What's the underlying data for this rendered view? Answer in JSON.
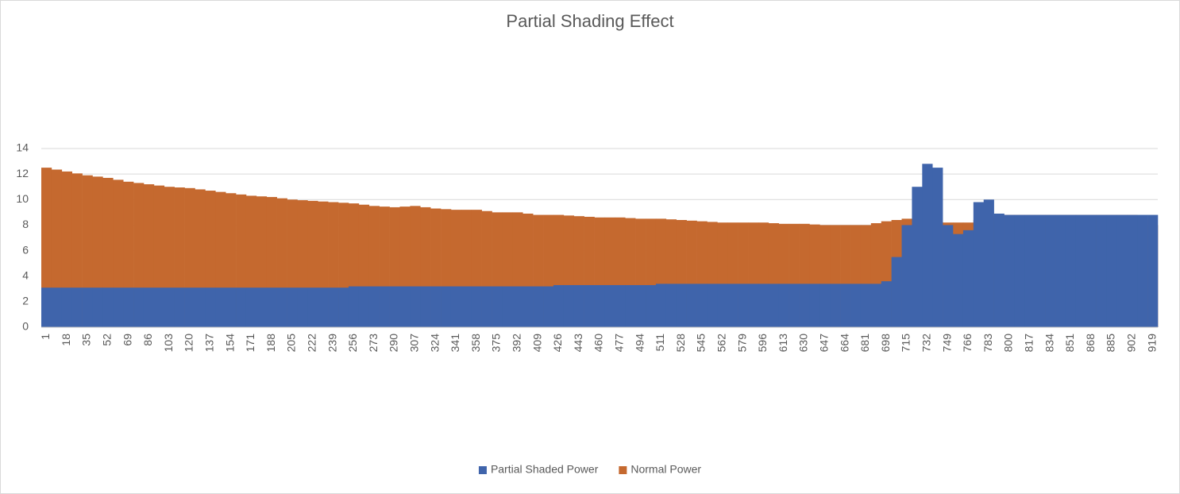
{
  "chart_data": {
    "type": "bar",
    "title": "Partial Shading Effect",
    "categories": [
      1,
      null,
      18,
      null,
      35,
      null,
      52,
      null,
      69,
      null,
      86,
      null,
      103,
      null,
      120,
      null,
      137,
      null,
      154,
      null,
      171,
      null,
      188,
      null,
      205,
      null,
      222,
      null,
      239,
      null,
      256,
      null,
      273,
      null,
      290,
      null,
      307,
      null,
      324,
      null,
      341,
      null,
      358,
      null,
      375,
      null,
      392,
      null,
      409,
      null,
      426,
      null,
      443,
      null,
      460,
      null,
      477,
      null,
      494,
      null,
      511,
      null,
      528,
      null,
      545,
      null,
      562,
      null,
      579,
      null,
      596,
      null,
      613,
      null,
      630,
      null,
      647,
      null,
      664,
      null,
      681,
      null,
      698,
      null,
      715,
      null,
      732,
      null,
      749,
      null,
      766,
      null,
      783,
      null,
      800,
      null,
      817,
      null,
      834,
      null,
      851,
      null,
      868,
      null,
      885,
      null,
      902,
      null,
      919
    ],
    "series": [
      {
        "name": "Partial Shaded Power",
        "color": "#3f64ab",
        "values": [
          3.1,
          3.1,
          3.1,
          3.1,
          3.1,
          3.1,
          3.1,
          3.1,
          3.1,
          3.1,
          3.1,
          3.1,
          3.1,
          3.1,
          3.1,
          3.1,
          3.1,
          3.1,
          3.1,
          3.1,
          3.1,
          3.1,
          3.1,
          3.1,
          3.1,
          3.1,
          3.1,
          3.1,
          3.1,
          3.1,
          3.2,
          3.2,
          3.2,
          3.2,
          3.2,
          3.2,
          3.2,
          3.2,
          3.2,
          3.2,
          3.2,
          3.2,
          3.2,
          3.2,
          3.2,
          3.2,
          3.2,
          3.2,
          3.2,
          3.2,
          3.3,
          3.3,
          3.3,
          3.3,
          3.3,
          3.3,
          3.3,
          3.3,
          3.3,
          3.3,
          3.4,
          3.4,
          3.4,
          3.4,
          3.4,
          3.4,
          3.4,
          3.4,
          3.4,
          3.4,
          3.4,
          3.4,
          3.4,
          3.4,
          3.4,
          3.4,
          3.4,
          3.4,
          3.4,
          3.4,
          3.4,
          3.4,
          3.6,
          5.5,
          8.0,
          11.0,
          12.8,
          12.5,
          8.0,
          7.3,
          7.6,
          9.8,
          10.0,
          8.9,
          8.8,
          8.8,
          8.8,
          8.8,
          8.8,
          8.8,
          8.8,
          8.8,
          8.8,
          8.8,
          8.8,
          8.8,
          8.8,
          8.8,
          8.8
        ]
      },
      {
        "name": "Normal Power",
        "color": "#c5692f",
        "values": [
          12.5,
          12.35,
          12.2,
          12.05,
          11.9,
          11.8,
          11.7,
          11.55,
          11.4,
          11.3,
          11.2,
          11.1,
          11.0,
          10.95,
          10.9,
          10.8,
          10.7,
          10.6,
          10.5,
          10.4,
          10.3,
          10.25,
          10.2,
          10.1,
          10.0,
          9.95,
          9.9,
          9.85,
          9.8,
          9.75,
          9.7,
          9.6,
          9.5,
          9.45,
          9.4,
          9.45,
          9.5,
          9.4,
          9.3,
          9.25,
          9.2,
          9.2,
          9.2,
          9.1,
          9.0,
          9.0,
          9.0,
          8.9,
          8.8,
          8.8,
          8.8,
          8.75,
          8.7,
          8.65,
          8.6,
          8.6,
          8.6,
          8.55,
          8.5,
          8.5,
          8.5,
          8.45,
          8.4,
          8.35,
          8.3,
          8.25,
          8.2,
          8.2,
          8.2,
          8.2,
          8.2,
          8.15,
          8.1,
          8.1,
          8.1,
          8.05,
          8.0,
          8.0,
          8.0,
          8.0,
          8.0,
          8.15,
          8.3,
          8.4,
          8.5,
          8.4,
          8.3,
          8.25,
          8.2,
          8.2,
          8.2,
          8.4,
          8.6,
          8.7,
          8.8,
          8.8,
          8.8,
          8.8,
          8.8,
          8.8,
          8.8,
          8.8,
          8.8,
          8.8,
          8.8,
          8.8,
          8.8,
          8.4,
          8.0
        ]
      }
    ],
    "ylim": [
      0,
      14
    ],
    "yticks": [
      0,
      2,
      4,
      6,
      8,
      10,
      12,
      14
    ],
    "grid": true,
    "legend": "bottom"
  }
}
